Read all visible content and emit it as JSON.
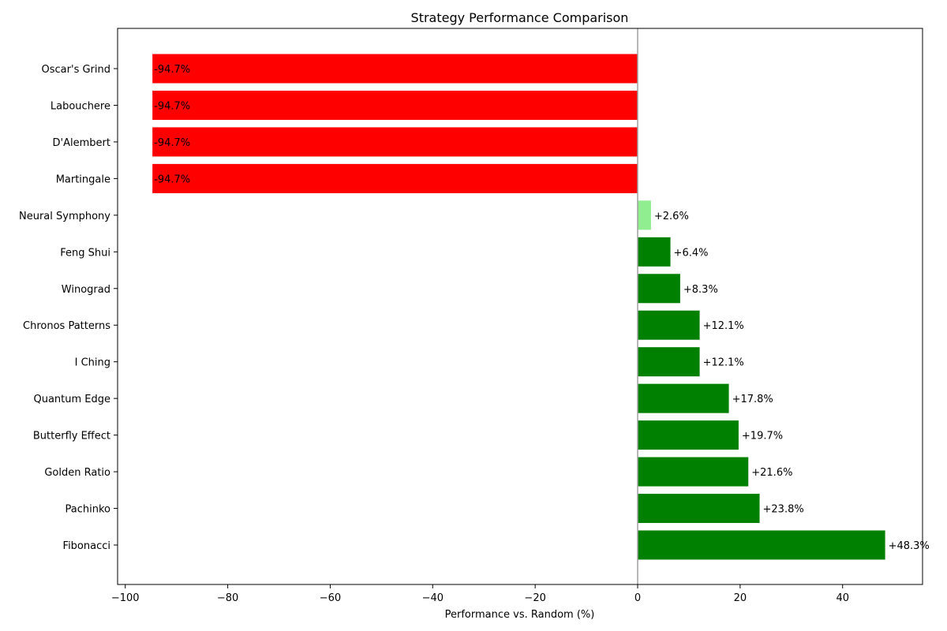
{
  "chart_data": {
    "type": "bar",
    "orientation": "horizontal",
    "title": "Strategy Performance Comparison",
    "xlabel": "Performance vs. Random (%)",
    "ylabel": "",
    "xlim": [
      -101.5,
      55.6
    ],
    "xticks": [
      -100,
      -80,
      -60,
      -40,
      -20,
      0,
      20,
      40
    ],
    "xtick_labels": [
      "−100",
      "−80",
      "−60",
      "−40",
      "−20",
      "0",
      "20",
      "40"
    ],
    "grid": false,
    "zero_line": true,
    "colors": {
      "negative": "#ff0000",
      "positive": "#008000",
      "small_positive": "#90ee90",
      "zero_line": "#a0a0a0"
    },
    "categories": [
      "Fibonacci",
      "Pachinko",
      "Golden Ratio",
      "Butterfly Effect",
      "Quantum Edge",
      "I Ching",
      "Chronos Patterns",
      "Winograd",
      "Feng Shui",
      "Neural Symphony",
      "Martingale",
      "D'Alembert",
      "Labouchere",
      "Oscar's Grind"
    ],
    "values": [
      48.3,
      23.8,
      21.6,
      19.7,
      17.8,
      12.1,
      12.1,
      8.3,
      6.4,
      2.6,
      -94.7,
      -94.7,
      -94.7,
      -94.7
    ],
    "value_labels": [
      "+48.3%",
      "+23.8%",
      "+21.6%",
      "+19.7%",
      "+17.8%",
      "+12.1%",
      "+12.1%",
      "+8.3%",
      "+6.4%",
      "+2.6%",
      "-94.7%",
      "-94.7%",
      "-94.7%",
      "-94.7%"
    ],
    "bar_colors": [
      "#008000",
      "#008000",
      "#008000",
      "#008000",
      "#008000",
      "#008000",
      "#008000",
      "#008000",
      "#008000",
      "#90ee90",
      "#ff0000",
      "#ff0000",
      "#ff0000",
      "#ff0000"
    ]
  }
}
